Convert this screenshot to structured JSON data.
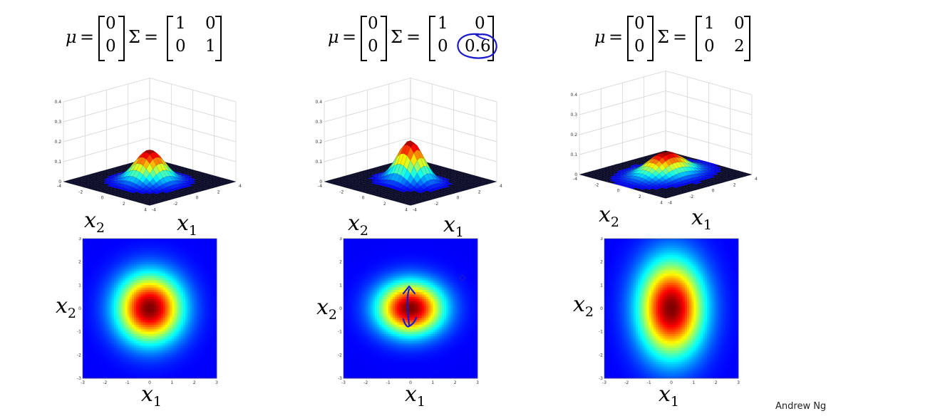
{
  "panels": [
    {
      "mu_symbol": "μ",
      "eq": "=",
      "mu": [
        "0",
        "0"
      ],
      "sigma_symbol": "Σ",
      "sigma": [
        [
          "1",
          "0"
        ],
        [
          "0",
          "1"
        ]
      ],
      "x1_label": "x",
      "x1_sub": "1",
      "x2_label": "x",
      "x2_sub": "2"
    },
    {
      "mu_symbol": "μ",
      "eq": "=",
      "mu": [
        "0",
        "0"
      ],
      "sigma_symbol": "Σ",
      "sigma": [
        [
          "1",
          "0"
        ],
        [
          "0",
          "0.6"
        ]
      ],
      "x1_label": "x",
      "x1_sub": "1",
      "x2_label": "x",
      "x2_sub": "2"
    },
    {
      "mu_symbol": "μ",
      "eq": "=",
      "mu": [
        "0",
        "0"
      ],
      "sigma_symbol": "Σ",
      "sigma": [
        [
          "1",
          "0"
        ],
        [
          "0",
          "2"
        ]
      ],
      "x1_label": "x",
      "x1_sub": "1",
      "x2_label": "x",
      "x2_sub": "2"
    }
  ],
  "surface_z_ticks": [
    "0.4",
    "0.3",
    "0.2",
    "0.1",
    "0"
  ],
  "surface_xy_ticks": [
    "4",
    "2",
    "0",
    "-2",
    "-4"
  ],
  "heatmap_ticks": [
    "-3",
    "-2",
    "-1",
    "0",
    "1",
    "2",
    "3"
  ],
  "annotation_color": "#1a1acc",
  "credit": "Andrew Ng"
}
